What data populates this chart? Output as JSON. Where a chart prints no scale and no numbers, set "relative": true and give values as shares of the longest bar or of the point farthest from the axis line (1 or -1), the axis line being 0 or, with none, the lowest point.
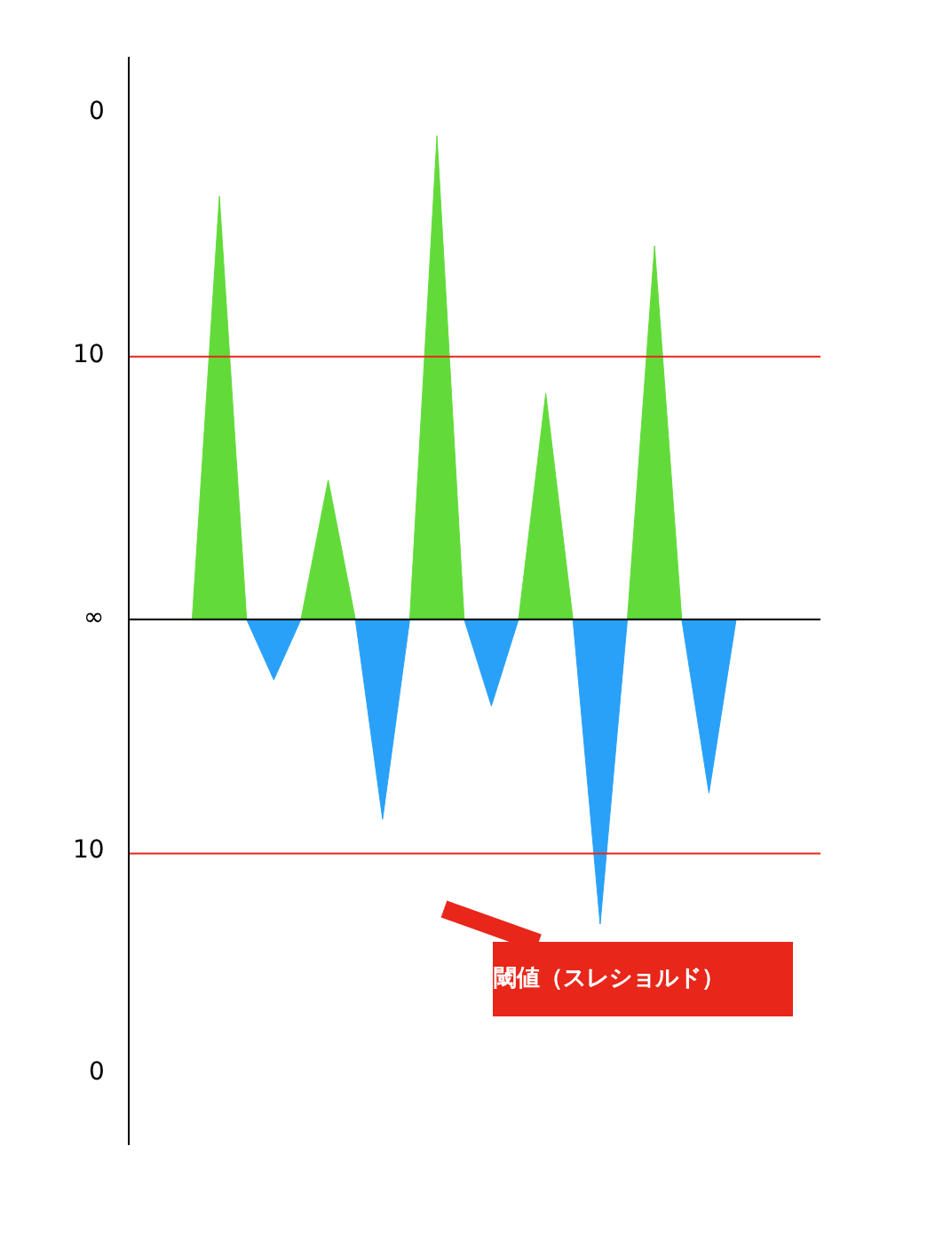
{
  "chart_data": {
    "type": "area",
    "categories": [
      null,
      null,
      null,
      null,
      null,
      null,
      null,
      null,
      null,
      null,
      null,
      null,
      null,
      null,
      null,
      null,
      null,
      null,
      null,
      null,
      null
    ],
    "relative": true,
    "series": [
      {
        "color": "#62db3a",
        "values": [
          0,
          0.875,
          0,
          0,
          0,
          0.288,
          0,
          0,
          0,
          1,
          0,
          0,
          0,
          0.467,
          0,
          0,
          0,
          0.772,
          0,
          0,
          0
        ]
      },
      {
        "color": "#2aa1f8",
        "values": [
          0,
          0,
          0,
          -0.125,
          0,
          0,
          0,
          -0.413,
          0,
          0,
          0,
          -0.179,
          0,
          0,
          0,
          -0.63,
          0,
          0,
          0,
          -0.359,
          0
        ]
      }
    ],
    "ref_lines": [
      {
        "axis": "y",
        "value": 0.543,
        "color": "#e8261a"
      },
      {
        "axis": "y",
        "value": -0.484,
        "color": "#e8261a"
      },
      {
        "axis": "y",
        "value": 0,
        "color": "#000000"
      }
    ],
    "annotations": [
      "0",
      "10",
      "∞",
      "10",
      "0",
      "閾値（スレショルド）"
    ]
  }
}
